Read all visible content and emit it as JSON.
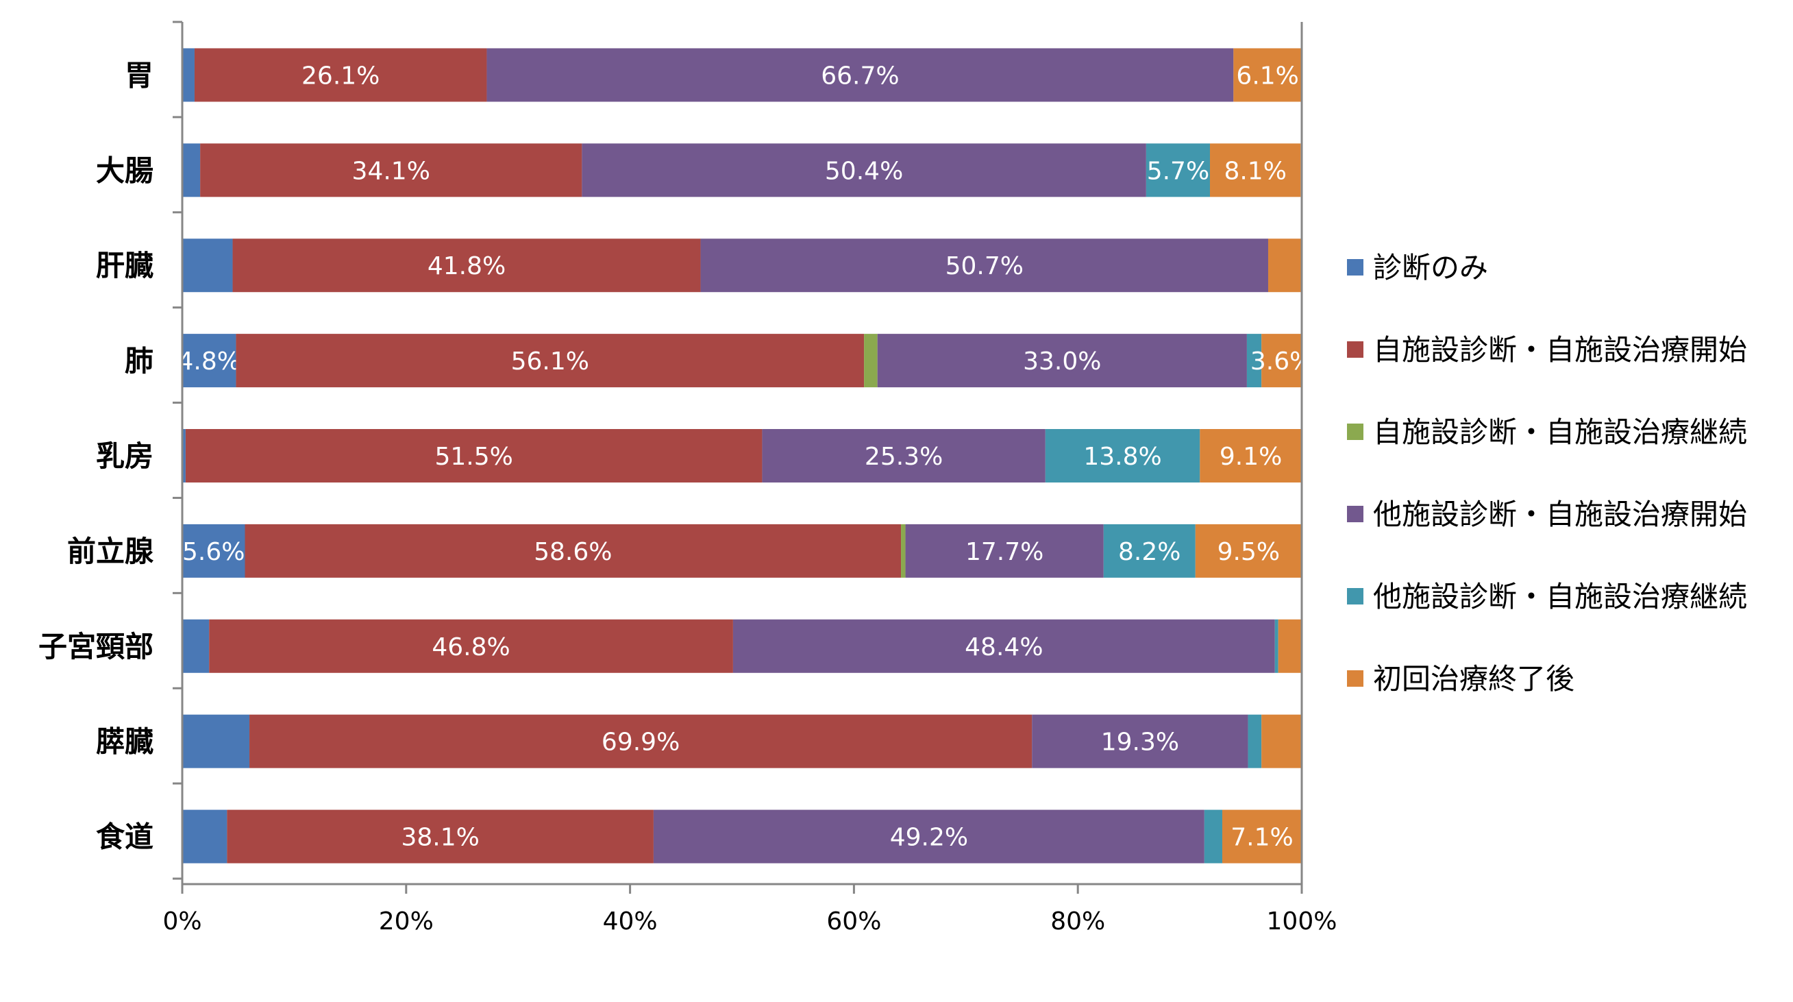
{
  "chart_data": {
    "type": "bar",
    "orientation": "horizontal",
    "stacked": true,
    "percent_stacked": true,
    "categories": [
      "胃",
      "大腸",
      "肝臓",
      "肺",
      "乳房",
      "前立腺",
      "子宮頸部",
      "膵臓",
      "食道"
    ],
    "x_ticks": [
      "0%",
      "20%",
      "40%",
      "60%",
      "80%",
      "100%"
    ],
    "xlim": [
      0,
      100
    ],
    "grid": false,
    "legend_position": "right",
    "series": [
      {
        "name": "診断のみ",
        "color": "#4a78b5",
        "values": [
          1.1,
          1.6,
          4.5,
          4.8,
          0.3,
          5.6,
          2.4,
          6.0,
          4.0
        ],
        "labels": [
          "",
          "",
          "",
          "4.8%",
          "",
          "5.6%",
          "",
          "",
          ""
        ]
      },
      {
        "name": "自施設診断・自施設治療開始",
        "color": "#a84744",
        "values": [
          26.1,
          34.1,
          41.8,
          56.1,
          51.5,
          58.6,
          46.8,
          69.9,
          38.1
        ],
        "labels": [
          "26.1%",
          "34.1%",
          "41.8%",
          "56.1%",
          "51.5%",
          "58.6%",
          "46.8%",
          "69.9%",
          "38.1%"
        ]
      },
      {
        "name": "自施設診断・自施設治療継続",
        "color": "#8ba94f",
        "values": [
          0,
          0,
          0,
          1.2,
          0,
          0.4,
          0,
          0,
          0
        ],
        "labels": [
          "",
          "",
          "",
          "",
          "",
          "",
          "",
          "",
          ""
        ]
      },
      {
        "name": "他施設診断・自施設治療開始",
        "color": "#72588e",
        "values": [
          66.7,
          50.4,
          50.7,
          33.0,
          25.3,
          17.7,
          48.4,
          19.3,
          49.2
        ],
        "labels": [
          "66.7%",
          "50.4%",
          "50.7%",
          "33.0%",
          "25.3%",
          "17.7%",
          "48.4%",
          "19.3%",
          "49.2%"
        ]
      },
      {
        "name": "他施設診断・自施設治療継続",
        "color": "#4197ad",
        "values": [
          0,
          5.7,
          0,
          1.3,
          13.8,
          8.2,
          0.3,
          1.2,
          1.6
        ],
        "labels": [
          "",
          "5.7%",
          "",
          "",
          "13.8%",
          "8.2%",
          "",
          "",
          ""
        ]
      },
      {
        "name": "初回治療終了後",
        "color": "#da8439",
        "values": [
          6.1,
          8.1,
          3.0,
          3.6,
          9.1,
          9.5,
          2.1,
          3.6,
          7.1
        ],
        "labels": [
          "6.1%",
          "8.1%",
          "",
          "3.6%",
          "9.1%",
          "9.5%",
          "",
          "",
          "7.1%"
        ]
      }
    ]
  }
}
